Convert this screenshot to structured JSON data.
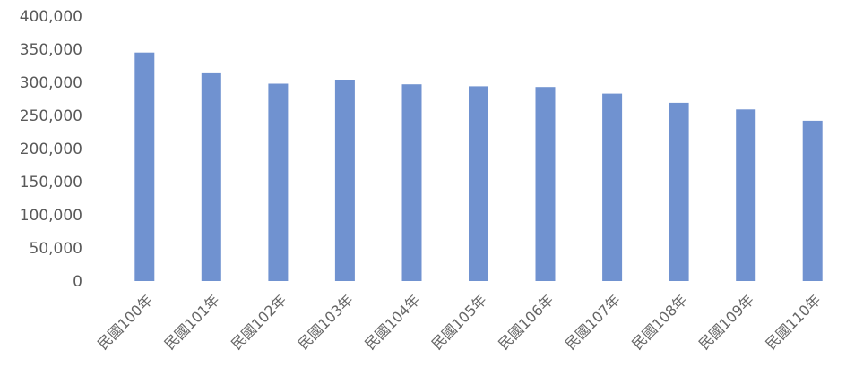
{
  "chart_data": {
    "type": "bar",
    "title": "",
    "xlabel": "",
    "ylabel": "",
    "categories": [
      "民國100年",
      "民國101年",
      "民國102年",
      "民國103年",
      "民國104年",
      "民國105年",
      "民國106年",
      "民國107年",
      "民國108年",
      "民國109年",
      "民國110年"
    ],
    "values": [
      345000,
      315000,
      298000,
      304000,
      297000,
      294000,
      293000,
      283000,
      269000,
      259000,
      242000
    ],
    "ylim": [
      0,
      400000
    ],
    "yticks": [
      0,
      50000,
      100000,
      150000,
      200000,
      250000,
      300000,
      350000,
      400000
    ],
    "ytick_labels": [
      "0",
      "50,000",
      "100,000",
      "150,000",
      "200,000",
      "250,000",
      "300,000",
      "350,000",
      "400,000"
    ],
    "grid": false,
    "legend": "none",
    "bar_color": "#7092d0"
  }
}
